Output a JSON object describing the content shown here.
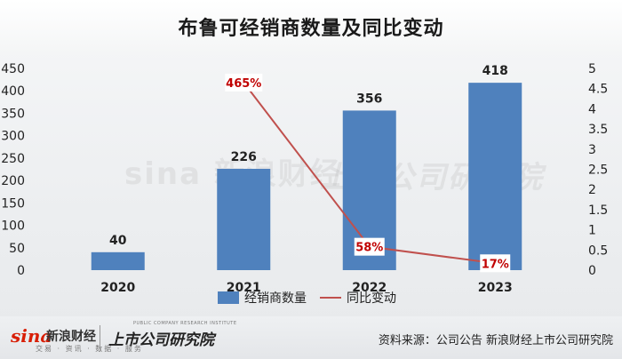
{
  "title": "布鲁可经销商数量及同比变动",
  "chart_data": {
    "type": "bar",
    "categories": [
      "2020",
      "2021",
      "2022",
      "2023"
    ],
    "series": [
      {
        "name": "经销商数量",
        "type": "bar",
        "axis": "left",
        "values": [
          40,
          226,
          356,
          418
        ],
        "color": "#4f81bd"
      },
      {
        "name": "同比变动",
        "type": "line",
        "axis": "right",
        "values": [
          null,
          4.65,
          0.58,
          0.17
        ],
        "labels": [
          "",
          "465%",
          "58%",
          "17%"
        ],
        "color": "#c0504d"
      }
    ],
    "y_left": {
      "min": 0,
      "max": 450,
      "ticks": [
        "0",
        "50",
        "100",
        "150",
        "200",
        "250",
        "300",
        "350",
        "400",
        "450"
      ]
    },
    "y_right": {
      "min": 0,
      "max": 5,
      "ticks": [
        "0",
        "0.5",
        "1",
        "1.5",
        "2",
        "2.5",
        "3",
        "3.5",
        "4",
        "4.5",
        "5"
      ]
    },
    "legend": "bottom-center",
    "grid": false
  },
  "footer": {
    "sina_logo": "sina",
    "sina_cn": "新浪财经",
    "sina_sub": "交易 · 资讯 · 数据 · 服务",
    "institute": "上市公司研究院",
    "institute_sub": "PUBLIC COMPANY RESEARCH INSTITUTE",
    "source": "资料来源：公司公告 新浪财经上市公司研究院"
  },
  "watermark": {
    "left": "sina 新浪财经",
    "right": "上市公司研究院"
  }
}
